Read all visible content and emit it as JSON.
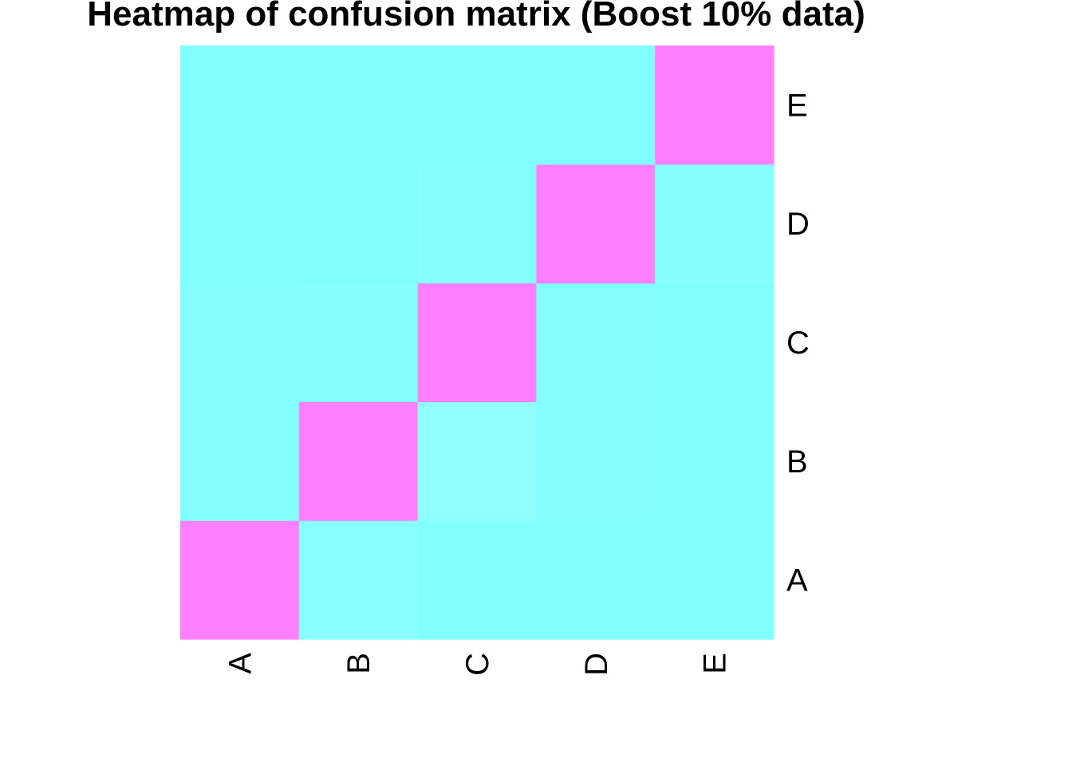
{
  "chart_data": {
    "type": "heatmap",
    "title": "Heatmap of confusion matrix (Boost 10% data)",
    "x_categories": [
      "A",
      "B",
      "C",
      "D",
      "E"
    ],
    "y_categories": [
      "A",
      "B",
      "C",
      "D",
      "E"
    ],
    "values": [
      [
        1.0,
        0.03,
        0.005,
        0.005,
        0.005
      ],
      [
        0.015,
        1.0,
        0.06,
        0.01,
        0.005
      ],
      [
        0.01,
        0.025,
        1.0,
        0.015,
        0.005
      ],
      [
        0.005,
        0.005,
        0.02,
        1.0,
        0.025
      ],
      [
        0.005,
        0.005,
        0.005,
        0.005,
        1.0
      ]
    ],
    "color_scale": {
      "low": "#80ffff",
      "high": "#ff80ff"
    },
    "legend": "none",
    "grid": false
  }
}
